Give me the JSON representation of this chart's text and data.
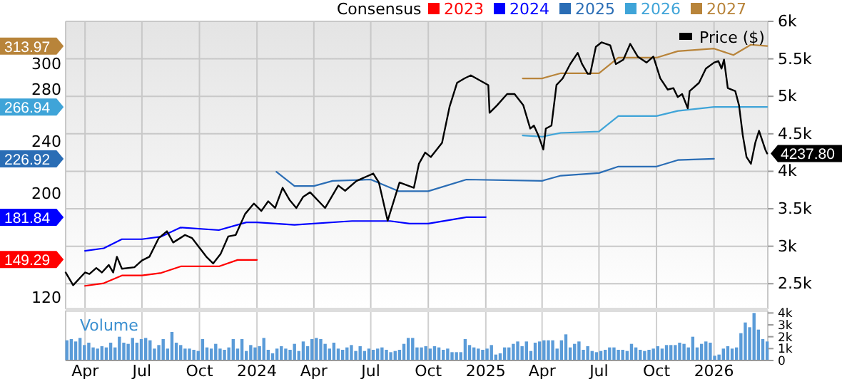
{
  "chart_data": [
    {
      "type": "line",
      "legend_title": "Consensus",
      "legend": "top",
      "grid": true,
      "tick_labels": "y",
      "xlim": [
        "2023-03-01",
        "2026-03-28"
      ],
      "xticks": [
        {
          "value": "2023-04-01",
          "label": null
        },
        {
          "value": "2023-07-01",
          "label": null
        },
        {
          "value": "2023-10-01",
          "label": null
        },
        {
          "value": "2024-01-01",
          "label": null
        },
        {
          "value": "2024-04-01",
          "label": null
        },
        {
          "value": "2024-07-01",
          "label": null
        },
        {
          "value": "2024-10-01",
          "label": null
        },
        {
          "value": "2025-01-01",
          "label": null
        },
        {
          "value": "2025-04-01",
          "label": null
        },
        {
          "value": "2025-07-01",
          "label": null
        },
        {
          "value": "2025-10-01",
          "label": null
        },
        {
          "value": "2026-01-01",
          "label": null
        }
      ],
      "ylim": [
        111,
        333
      ],
      "yticks": [
        120,
        200,
        240,
        280,
        300
      ],
      "annotations": [
        "149.29",
        "181.84",
        "226.92",
        "266.94",
        "313.97"
      ],
      "y2lim": [
        2160,
        6000
      ],
      "y2ticks": [
        {
          "value": 2500,
          "label": "2.5k"
        },
        {
          "value": 3000,
          "label": "3k"
        },
        {
          "value": 3500,
          "label": "3.5k"
        },
        {
          "value": 4000,
          "label": "4k"
        },
        {
          "value": 4500,
          "label": "4.5k"
        },
        {
          "value": 5000,
          "label": "5k"
        },
        {
          "value": 5500,
          "label": "5.5k"
        },
        {
          "value": 6000,
          "label": "6k"
        }
      ],
      "series": [
        {
          "name": "2023",
          "color": "#ff0000",
          "x": [
            "2023-04-01",
            "2023-05-01",
            "2023-05-30",
            "2023-07-01",
            "2023-08-01",
            "2023-09-01",
            "2023-11-01",
            "2023-12-01",
            "2024-01-01"
          ],
          "values": [
            129,
            131,
            137,
            137,
            139,
            144,
            144,
            149,
            149
          ]
        },
        {
          "name": "2024",
          "color": "#0000ff",
          "x": [
            "2023-04-01",
            "2023-05-01",
            "2023-05-30",
            "2023-07-01",
            "2023-08-01",
            "2023-09-01",
            "2023-11-01",
            "2023-12-15",
            "2024-01-01",
            "2024-03-01",
            "2024-06-01",
            "2024-08-01",
            "2024-09-01",
            "2024-10-01",
            "2024-12-01",
            "2025-01-01"
          ],
          "values": [
            156,
            158,
            165,
            165,
            167,
            174,
            172,
            178,
            178,
            176,
            179,
            179,
            177,
            177,
            182,
            182
          ]
        },
        {
          "name": "2025",
          "color": "#2a6db5",
          "x": [
            "2024-02-01",
            "2024-03-01",
            "2024-04-01",
            "2024-05-01",
            "2024-07-01",
            "2024-08-15",
            "2024-10-01",
            "2024-12-01",
            "2025-04-01",
            "2025-05-01",
            "2025-07-01",
            "2025-08-01",
            "2025-10-01",
            "2025-11-04",
            "2026-01-01"
          ],
          "values": [
            217,
            206,
            206,
            210,
            211,
            202,
            202,
            211,
            210,
            214,
            216,
            221,
            221,
            226,
            227
          ]
        },
        {
          "name": "2026",
          "color": "#3fa4d8",
          "x": [
            "2025-03-01",
            "2025-04-01",
            "2025-05-01",
            "2025-07-01",
            "2025-08-01",
            "2025-10-01",
            "2025-11-04",
            "2026-01-01",
            "2026-03-27"
          ],
          "values": [
            245,
            244,
            247,
            248,
            260,
            260,
            264,
            267,
            267
          ]
        },
        {
          "name": "2027",
          "color": "#b8843a",
          "x": [
            "2025-03-01",
            "2025-04-01",
            "2025-05-01",
            "2025-07-01",
            "2025-08-01",
            "2025-10-01",
            "2025-11-04",
            "2026-01-01",
            "2026-02-01",
            "2026-03-01",
            "2026-03-27"
          ],
          "values": [
            289,
            289,
            293,
            293,
            305,
            305,
            310,
            312,
            307,
            315,
            314
          ]
        },
        {
          "name": "Price ($)",
          "color": "#000000",
          "axis": "y2",
          "x": [
            "2023-03-01",
            "2023-03-13",
            "2023-04-01",
            "2023-04-08",
            "2023-04-19",
            "2023-04-28",
            "2023-05-09",
            "2023-05-16",
            "2023-05-22",
            "2023-05-30",
            "2023-06-19",
            "2023-07-01",
            "2023-07-13",
            "2023-07-28",
            "2023-08-10",
            "2023-08-20",
            "2023-09-08",
            "2023-09-19",
            "2023-10-12",
            "2023-10-23",
            "2023-11-04",
            "2023-11-16",
            "2023-11-28",
            "2023-12-13",
            "2023-12-27",
            "2024-01-08",
            "2024-01-19",
            "2024-01-30",
            "2024-02-11",
            "2024-02-22",
            "2024-03-04",
            "2024-03-15",
            "2024-03-26",
            "2024-04-19",
            "2024-05-10",
            "2024-05-21",
            "2024-06-08",
            "2024-07-05",
            "2024-07-14",
            "2024-07-28",
            "2024-08-16",
            "2024-09-08",
            "2024-09-16",
            "2024-09-26",
            "2024-10-05",
            "2024-10-23",
            "2024-11-04",
            "2024-11-16",
            "2024-11-28",
            "2024-12-08",
            "2025-01-05",
            "2025-01-07",
            "2025-01-19",
            "2025-02-04",
            "2025-02-16",
            "2025-03-02",
            "2025-03-13",
            "2025-03-19",
            "2025-03-26",
            "2025-04-03",
            "2025-04-07",
            "2025-04-16",
            "2025-04-24",
            "2025-05-04",
            "2025-05-16",
            "2025-05-28",
            "2025-06-04",
            "2025-06-13",
            "2025-06-17",
            "2025-06-26",
            "2025-07-05",
            "2025-07-19",
            "2025-07-28",
            "2025-08-09",
            "2025-08-20",
            "2025-09-01",
            "2025-09-15",
            "2025-09-26",
            "2025-10-07",
            "2025-10-19",
            "2025-10-28",
            "2025-11-04",
            "2025-11-11",
            "2025-11-20",
            "2025-11-23",
            "2025-12-08",
            "2025-12-19",
            "2026-01-01",
            "2026-01-08",
            "2026-01-13",
            "2026-01-17",
            "2026-01-23",
            "2026-02-04",
            "2026-02-10",
            "2026-02-16",
            "2026-02-22",
            "2026-03-01",
            "2026-03-08",
            "2026-03-14",
            "2026-03-24",
            "2026-03-27"
          ],
          "values": [
            2650,
            2480,
            2650,
            2630,
            2710,
            2650,
            2750,
            2650,
            2860,
            2700,
            2720,
            2810,
            2860,
            3110,
            3200,
            3050,
            3150,
            3110,
            2860,
            2770,
            2900,
            3130,
            3150,
            3430,
            3570,
            3470,
            3600,
            3510,
            3780,
            3620,
            3510,
            3660,
            3720,
            3510,
            3810,
            3740,
            3870,
            3970,
            3850,
            3340,
            3850,
            3780,
            4100,
            4250,
            4190,
            4380,
            4860,
            5180,
            5240,
            5280,
            5150,
            4780,
            4880,
            5030,
            5030,
            4880,
            4570,
            4610,
            4480,
            4290,
            4570,
            4610,
            5150,
            5240,
            5430,
            5580,
            5430,
            5300,
            5300,
            5660,
            5720,
            5680,
            5430,
            5490,
            5700,
            5530,
            5450,
            5530,
            5240,
            5090,
            5110,
            4990,
            5030,
            4840,
            5070,
            5180,
            5370,
            5450,
            5470,
            5370,
            5490,
            5110,
            5070,
            4880,
            4480,
            4190,
            4100,
            4380,
            4540,
            4290,
            4237.8
          ],
          "value_labels": [
            null,
            null,
            null,
            null,
            null,
            null,
            null,
            null,
            null,
            null,
            null,
            null,
            null,
            null,
            null,
            null,
            null,
            null,
            null,
            null,
            null,
            null,
            null,
            null,
            null,
            null,
            null,
            null,
            null,
            null,
            null,
            null,
            null,
            null,
            null,
            null,
            null,
            null,
            null,
            null,
            null,
            null,
            null,
            null,
            null,
            null,
            null,
            null,
            null,
            null,
            null,
            null,
            null,
            null,
            null,
            null,
            null,
            null,
            null,
            null,
            null,
            null,
            null,
            null,
            null,
            null,
            null,
            null,
            null,
            null,
            null,
            null,
            null,
            null,
            null,
            null,
            null,
            null,
            null,
            null,
            null,
            null,
            null,
            null,
            null,
            null,
            null,
            null,
            null,
            null,
            null,
            null,
            null,
            null,
            null,
            null,
            null,
            null,
            null,
            null,
            "4237.80"
          ]
        }
      ]
    },
    {
      "type": "bar",
      "title": "Volume",
      "xlim": [
        "2023-03-01",
        "2026-03-28"
      ],
      "xticks": [
        {
          "value": "2023-04-01",
          "label": "Apr"
        },
        {
          "value": "2023-07-01",
          "label": "Jul"
        },
        {
          "value": "2023-10-01",
          "label": "Oct"
        },
        {
          "value": "2024-01-01",
          "label": "2024"
        },
        {
          "value": "2024-04-01",
          "label": "Apr"
        },
        {
          "value": "2024-07-01",
          "label": "Jul"
        },
        {
          "value": "2024-10-01",
          "label": "Oct"
        },
        {
          "value": "2025-01-01",
          "label": "2025"
        },
        {
          "value": "2025-04-01",
          "label": "Apr"
        },
        {
          "value": "2025-07-01",
          "label": "Jul"
        },
        {
          "value": "2025-10-01",
          "label": "Oct"
        },
        {
          "value": "2026-01-01",
          "label": "2026"
        }
      ],
      "ylim": [
        0,
        4200
      ],
      "yticks": [
        0,
        {
          "value": 1000,
          "label": "1k"
        },
        {
          "value": 2000,
          "label": "2k"
        },
        {
          "value": 3000,
          "label": "3k"
        },
        {
          "value": 4000,
          "label": "4k"
        }
      ],
      "grid": "x",
      "x": [
        "2023-03-03",
        "2023-03-10",
        "2023-03-17",
        "2023-03-24",
        "2023-03-31",
        "2023-04-07",
        "2023-04-14",
        "2023-04-21",
        "2023-04-28",
        "2023-05-05",
        "2023-05-12",
        "2023-05-19",
        "2023-05-26",
        "2023-06-02",
        "2023-06-09",
        "2023-06-16",
        "2023-06-23",
        "2023-06-30",
        "2023-07-07",
        "2023-07-14",
        "2023-07-21",
        "2023-07-28",
        "2023-08-04",
        "2023-08-11",
        "2023-08-18",
        "2023-08-25",
        "2023-09-01",
        "2023-09-08",
        "2023-09-15",
        "2023-09-22",
        "2023-09-29",
        "2023-10-06",
        "2023-10-13",
        "2023-10-20",
        "2023-10-27",
        "2023-11-03",
        "2023-11-10",
        "2023-11-17",
        "2023-11-24",
        "2023-12-01",
        "2023-12-08",
        "2023-12-15",
        "2023-12-22",
        "2023-12-29",
        "2024-01-05",
        "2024-01-12",
        "2024-01-19",
        "2024-01-26",
        "2024-02-02",
        "2024-02-09",
        "2024-02-16",
        "2024-02-23",
        "2024-03-01",
        "2024-03-08",
        "2024-03-15",
        "2024-03-22",
        "2024-03-29",
        "2024-04-05",
        "2024-04-12",
        "2024-04-19",
        "2024-04-26",
        "2024-05-03",
        "2024-05-10",
        "2024-05-17",
        "2024-05-24",
        "2024-05-31",
        "2024-06-07",
        "2024-06-14",
        "2024-06-21",
        "2024-06-28",
        "2024-07-05",
        "2024-07-12",
        "2024-07-19",
        "2024-07-26",
        "2024-08-02",
        "2024-08-09",
        "2024-08-16",
        "2024-08-23",
        "2024-08-30",
        "2024-09-06",
        "2024-09-13",
        "2024-09-20",
        "2024-09-27",
        "2024-10-04",
        "2024-10-11",
        "2024-10-18",
        "2024-10-25",
        "2024-11-01",
        "2024-11-08",
        "2024-11-15",
        "2024-11-22",
        "2024-11-29",
        "2024-12-06",
        "2024-12-13",
        "2024-12-20",
        "2024-12-27",
        "2025-01-03",
        "2025-01-10",
        "2025-01-17",
        "2025-01-24",
        "2025-01-31",
        "2025-02-07",
        "2025-02-14",
        "2025-02-21",
        "2025-02-28",
        "2025-03-07",
        "2025-03-14",
        "2025-03-21",
        "2025-03-28",
        "2025-04-04",
        "2025-04-11",
        "2025-04-18",
        "2025-04-25",
        "2025-05-02",
        "2025-05-09",
        "2025-05-16",
        "2025-05-23",
        "2025-05-30",
        "2025-06-06",
        "2025-06-13",
        "2025-06-20",
        "2025-06-27",
        "2025-07-04",
        "2025-07-11",
        "2025-07-18",
        "2025-07-25",
        "2025-08-01",
        "2025-08-08",
        "2025-08-15",
        "2025-08-22",
        "2025-08-29",
        "2025-09-05",
        "2025-09-12",
        "2025-09-19",
        "2025-09-26",
        "2025-10-03",
        "2025-10-10",
        "2025-10-17",
        "2025-10-24",
        "2025-10-31",
        "2025-11-07",
        "2025-11-14",
        "2025-11-21",
        "2025-11-28",
        "2025-12-05",
        "2025-12-12",
        "2025-12-19",
        "2025-12-26",
        "2026-01-02",
        "2026-01-09",
        "2026-01-16",
        "2026-01-23",
        "2026-01-30",
        "2026-02-06",
        "2026-02-13",
        "2026-02-20",
        "2026-02-27",
        "2026-03-06",
        "2026-03-13",
        "2026-03-20",
        "2026-03-27"
      ],
      "values": [
        1700,
        1800,
        1600,
        1900,
        1300,
        1500,
        1100,
        1000,
        1200,
        1100,
        1500,
        1100,
        2000,
        1500,
        1400,
        1900,
        1500,
        1800,
        1900,
        1700,
        1000,
        1300,
        1800,
        1000,
        2400,
        1500,
        1300,
        1000,
        1000,
        900,
        800,
        1800,
        1100,
        1000,
        1400,
        1000,
        900,
        1100,
        1800,
        1000,
        1800,
        800,
        1300,
        1100,
        1200,
        1900,
        900,
        600,
        1000,
        1200,
        1000,
        900,
        1400,
        800,
        1600,
        1200,
        1800,
        1900,
        1800,
        1400,
        1000,
        1500,
        1000,
        900,
        1100,
        1300,
        800,
        1200,
        800,
        1000,
        900,
        1000,
        1100,
        900,
        700,
        800,
        900,
        1400,
        1900,
        1900,
        1100,
        1100,
        1200,
        1000,
        1200,
        1100,
        900,
        1000,
        700,
        700,
        700,
        1800,
        1300,
        1100,
        1000,
        900,
        1000,
        1300,
        500,
        600,
        1100,
        1100,
        1400,
        1600,
        1200,
        1600,
        800,
        1500,
        1600,
        1700,
        1700,
        1700,
        1000,
        1700,
        2200,
        1100,
        1400,
        1600,
        900,
        1200,
        800,
        700,
        800,
        900,
        1100,
        1100,
        900,
        900,
        800,
        1400,
        1100,
        900,
        800,
        900,
        1000,
        1200,
        1000,
        1300,
        1300,
        1300,
        1500,
        1400,
        1100,
        2000,
        1100,
        1400,
        1600,
        1500,
        400,
        500,
        1000,
        1200,
        1000,
        1100,
        2300,
        3200,
        2800,
        4000,
        2600,
        1800,
        1600
      ],
      "color": "#5a9bd8"
    }
  ]
}
